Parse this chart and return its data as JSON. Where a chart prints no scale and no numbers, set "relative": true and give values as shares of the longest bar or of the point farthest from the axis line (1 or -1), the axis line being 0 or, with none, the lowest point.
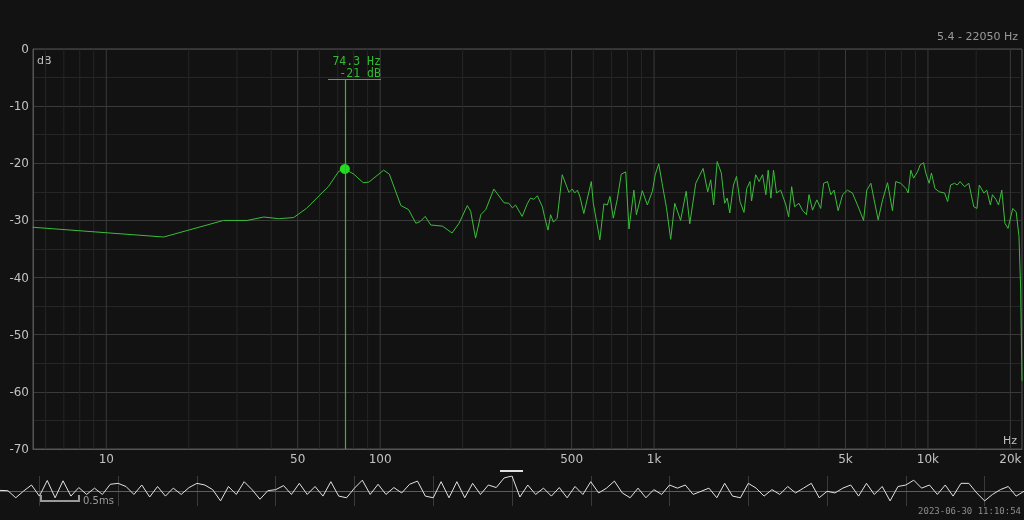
{
  "chart_data": [
    {
      "type": "line",
      "subtitle": "5.4 - 22050 Hz",
      "xlabel": "Hz",
      "ylabel": "dB",
      "log": "x",
      "grid": true,
      "marker": "none",
      "xlim": [
        5.4,
        22050
      ],
      "ylim": [
        -70,
        0
      ],
      "xticks": [
        {
          "value": 6,
          "label": null
        },
        {
          "value": 7,
          "label": null
        },
        {
          "value": 8,
          "label": null
        },
        {
          "value": 9,
          "label": null
        },
        10,
        {
          "value": 20,
          "label": null
        },
        {
          "value": 30,
          "label": null
        },
        {
          "value": 40,
          "label": null
        },
        50,
        {
          "value": 60,
          "label": null
        },
        {
          "value": 70,
          "label": null
        },
        {
          "value": 80,
          "label": null
        },
        {
          "value": 90,
          "label": null
        },
        100,
        {
          "value": 200,
          "label": null
        },
        {
          "value": 300,
          "label": null
        },
        {
          "value": 400,
          "label": null
        },
        500,
        {
          "value": 600,
          "label": null
        },
        {
          "value": 700,
          "label": null
        },
        {
          "value": 800,
          "label": null
        },
        {
          "value": 900,
          "label": null
        },
        {
          "value": 1000,
          "label": "1k"
        },
        {
          "value": 2000,
          "label": null
        },
        {
          "value": 3000,
          "label": null
        },
        {
          "value": 4000,
          "label": null
        },
        {
          "value": 5000,
          "label": "5k"
        },
        {
          "value": 6000,
          "label": null
        },
        {
          "value": 7000,
          "label": null
        },
        {
          "value": 8000,
          "label": null
        },
        {
          "value": 9000,
          "label": null
        },
        {
          "value": 10000,
          "label": "10k"
        },
        {
          "value": 15000,
          "label": null
        },
        {
          "value": 20000,
          "label": "20k"
        }
      ],
      "yticks": [
        -70,
        {
          "value": -65,
          "label": null
        },
        -60,
        {
          "value": -55,
          "label": null
        },
        -50,
        {
          "value": -45,
          "label": null
        },
        -40,
        {
          "value": -35,
          "label": null
        },
        -30,
        {
          "value": -25,
          "label": null
        },
        -20,
        {
          "value": -15,
          "label": null
        },
        -10,
        {
          "value": -5,
          "label": null
        },
        0
      ],
      "series": [
        {
          "color": "#3cbc3c",
          "x": [
            5.4,
            16.2,
            26.8,
            32.7,
            37.6,
            42.6,
            48.3,
            53.8,
            64.9,
            70.6,
            74.3,
            80.1,
            86.7,
            90.9,
            103,
            108,
            119,
            127,
            135,
            140,
            146,
            153,
            169,
            183,
            194,
            208,
            214,
            223,
            233,
            243,
            260,
            283,
            295,
            304,
            312,
            330,
            345,
            354,
            364,
            375,
            391,
            398,
            410,
            419,
            429,
            443,
            462,
            489,
            503,
            513,
            525,
            536,
            554,
            590,
            600,
            634,
            656,
            675,
            690,
            710,
            734,
            759,
            788,
            810,
            844,
            862,
            906,
            945,
            986,
            1010,
            1040,
            1070,
            1110,
            1150,
            1190,
            1250,
            1310,
            1350,
            1420,
            1510,
            1570,
            1610,
            1650,
            1700,
            1760,
            1810,
            1850,
            1890,
            1950,
            2000,
            2060,
            2130,
            2180,
            2240,
            2270,
            2350,
            2420,
            2490,
            2560,
            2610,
            2670,
            2730,
            2800,
            2900,
            3030,
            3100,
            3180,
            3260,
            3380,
            3480,
            3600,
            3680,
            3790,
            3930,
            4060,
            4160,
            4300,
            4420,
            4540,
            4700,
            4880,
            5080,
            5300,
            5530,
            5820,
            5980,
            6190,
            6360,
            6580,
            6830,
            7120,
            7420,
            7630,
            7960,
            8300,
            8470,
            8660,
            8860,
            9160,
            9360,
            9640,
            9820,
            10100,
            10300,
            10600,
            11000,
            11500,
            11800,
            12100,
            12500,
            12800,
            13100,
            13600,
            14100,
            14700,
            15100,
            15400,
            16000,
            16400,
            16900,
            17200,
            17700,
            18100,
            18600,
            19100,
            19600,
            20400,
            21000,
            21500,
            21800,
            22050
          ],
          "values": [
            -31.2,
            -32.9,
            -30,
            -30,
            -29.4,
            -29.7,
            -29.5,
            -27.9,
            -24,
            -21.4,
            -21,
            -21.9,
            -23.4,
            -23.3,
            -21.2,
            -21.9,
            -27.4,
            -28.1,
            -30.5,
            -30.2,
            -29.3,
            -30.8,
            -31,
            -32.2,
            -30.5,
            -27.4,
            -28.4,
            -33.1,
            -29,
            -28.1,
            -24.5,
            -26.9,
            -27,
            -27.8,
            -27.3,
            -29.3,
            -27,
            -26.1,
            -26.3,
            -25.7,
            -27.6,
            -29.3,
            -31.7,
            -29,
            -30.3,
            -29.6,
            -22,
            -25.1,
            -24.5,
            -25.2,
            -24.7,
            -25.8,
            -28.8,
            -23.2,
            -27,
            -33.4,
            -27.1,
            -27.3,
            -25.8,
            -29.6,
            -26.3,
            -21.9,
            -21.5,
            -31.5,
            -24.7,
            -29,
            -24.8,
            -27.3,
            -24.9,
            -22,
            -20.1,
            -23.5,
            -27.8,
            -33.3,
            -27,
            -30,
            -24.9,
            -30.6,
            -23.5,
            -20.9,
            -25,
            -22.9,
            -27.3,
            -19.7,
            -21.7,
            -27,
            -26.1,
            -28.7,
            -23.8,
            -22.3,
            -26.7,
            -28.6,
            -24.4,
            -23.2,
            -26.6,
            -22,
            -23.2,
            -22,
            -25.5,
            -21.2,
            -26.1,
            -21.2,
            -25.2,
            -24.7,
            -27.3,
            -29.4,
            -24.1,
            -27.6,
            -27,
            -28.2,
            -29,
            -25.5,
            -28.2,
            -26.4,
            -27.9,
            -23.5,
            -23.2,
            -25.5,
            -24.7,
            -28.3,
            -25.5,
            -24.7,
            -25.2,
            -27.3,
            -30,
            -24.7,
            -23.5,
            -26.4,
            -29.9,
            -26.4,
            -23.4,
            -28.3,
            -23.2,
            -23.5,
            -24.4,
            -25.2,
            -21.2,
            -22.6,
            -21.5,
            -20.3,
            -19.9,
            -21.7,
            -23.5,
            -21.7,
            -24.4,
            -25,
            -25.2,
            -26.7,
            -23.8,
            -23.5,
            -23.8,
            -23.2,
            -24.1,
            -23.5,
            -27.6,
            -27.9,
            -23.8,
            -25.2,
            -24.7,
            -27.3,
            -25.5,
            -26.3,
            -27.3,
            -24.7,
            -30.5,
            -31.4,
            -27.9,
            -28.5,
            -32.8,
            -42,
            -58
          ]
        },
        {
          "type": "scatter",
          "marker": "circle",
          "color": "#22dd22",
          "x": [
            74.3
          ],
          "values": [
            -21
          ]
        }
      ],
      "ref_lines": [
        {
          "axis": "x",
          "value": 74.3,
          "label": "74.3 Hz\n-21 dB",
          "color": "#33b833"
        }
      ]
    },
    {
      "type": "line",
      "relative": true,
      "grid": "x",
      "tick_labels": false,
      "color": "#e2e2e2",
      "categories": [
        null,
        null,
        null,
        null,
        null,
        null,
        null,
        null,
        null,
        null,
        null,
        null,
        null,
        null,
        null,
        null,
        null,
        null,
        null,
        null,
        null,
        null,
        null,
        null,
        null,
        null,
        null,
        null,
        null,
        null,
        null,
        null,
        null,
        null,
        null,
        null,
        null,
        null,
        null,
        null,
        null,
        null,
        null,
        null,
        null,
        null,
        null,
        null,
        null,
        null,
        null,
        null,
        null,
        null,
        null,
        null,
        null,
        null,
        null,
        null,
        null,
        null,
        null,
        null,
        null,
        null,
        null,
        null,
        null,
        null,
        null,
        null,
        null,
        null,
        null,
        null,
        null,
        null,
        null,
        null,
        null,
        null,
        null,
        null,
        null,
        null,
        null,
        null,
        null,
        null,
        null,
        null,
        null,
        null,
        null,
        null,
        null,
        null,
        null,
        null,
        null,
        null,
        null,
        null,
        null,
        null,
        null,
        null,
        null,
        null,
        null,
        null,
        null,
        null,
        null,
        null,
        null,
        null,
        null,
        null,
        null,
        null,
        null,
        null,
        null,
        null,
        null,
        null,
        null,
        null,
        null
      ],
      "values": [
        0.04,
        0.02,
        -0.45,
        0,
        0.4,
        -0.34,
        0.7,
        -0.45,
        0.68,
        -0.34,
        0.23,
        -0.23,
        0.19,
        -0.23,
        0.45,
        0.51,
        0.3,
        -0.23,
        0.4,
        -0.4,
        0.3,
        -0.34,
        0.19,
        -0.23,
        0.23,
        0.51,
        0.4,
        0.09,
        -0.66,
        0.3,
        -0.23,
        0.62,
        0.09,
        -0.55,
        0.02,
        0.09,
        0.36,
        -0.23,
        0.51,
        -0.23,
        0.3,
        -0.34,
        0.62,
        -0.34,
        -0.45,
        0.19,
        0.72,
        -0.23,
        0.45,
        -0.23,
        0.23,
        -0.13,
        0.45,
        0.66,
        -0.34,
        -0.45,
        0.62,
        -0.45,
        0.62,
        -0.45,
        0.51,
        -0.23,
        0.4,
        0.23,
        0.87,
        1,
        -0.4,
        0.4,
        -0.23,
        0.19,
        -0.34,
        0.23,
        -0.45,
        0.3,
        -0.23,
        0.62,
        -0.13,
        0.19,
        0.66,
        -0.13,
        -0.45,
        0.19,
        -0.45,
        0.09,
        -0.23,
        0.4,
        0.19,
        0.4,
        -0.23,
        -0.02,
        0.19,
        -0.45,
        0.51,
        -0.34,
        -0.45,
        0.51,
        0.19,
        -0.34,
        0.09,
        -0.23,
        0.3,
        -0.13,
        0.19,
        0.51,
        -0.45,
        -0.02,
        -0.13,
        0.19,
        0.4,
        -0.34,
        0.51,
        -0.23,
        0.3,
        -0.66,
        0.3,
        0.4,
        0.72,
        0.19,
        0.4,
        -0.23,
        0.4,
        -0.34,
        0.51,
        0.51,
        -0.13,
        -0.66,
        -0.23,
        0.09,
        0.3,
        -0.34,
        -0.02
      ],
      "annotations": [
        "0.5ms",
        "2023-06-30 11:10:54"
      ]
    }
  ]
}
